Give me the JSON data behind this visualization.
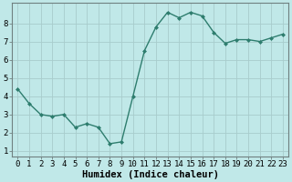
{
  "x": [
    0,
    1,
    2,
    3,
    4,
    5,
    6,
    7,
    8,
    9,
    10,
    11,
    12,
    13,
    14,
    15,
    16,
    17,
    18,
    19,
    20,
    21,
    22,
    23
  ],
  "y": [
    4.4,
    3.6,
    3.0,
    2.9,
    3.0,
    2.3,
    2.5,
    2.3,
    1.4,
    1.5,
    4.0,
    6.5,
    7.8,
    8.6,
    8.3,
    8.6,
    8.4,
    7.5,
    6.9,
    7.1,
    7.1,
    7.0,
    7.2,
    7.4
  ],
  "line_color": "#2e7d6e",
  "marker": "D",
  "marker_size": 2.0,
  "bg_color": "#c0e8e8",
  "grid_color": "#a8cccc",
  "xlabel": "Humidex (Indice chaleur)",
  "xlim": [
    -0.5,
    23.5
  ],
  "ylim": [
    0.7,
    9.1
  ],
  "xticks": [
    0,
    1,
    2,
    3,
    4,
    5,
    6,
    7,
    8,
    9,
    10,
    11,
    12,
    13,
    14,
    15,
    16,
    17,
    18,
    19,
    20,
    21,
    22,
    23
  ],
  "yticks": [
    1,
    2,
    3,
    4,
    5,
    6,
    7,
    8
  ],
  "xlabel_fontsize": 7.5,
  "tick_fontsize": 6.5,
  "line_width": 1.0
}
